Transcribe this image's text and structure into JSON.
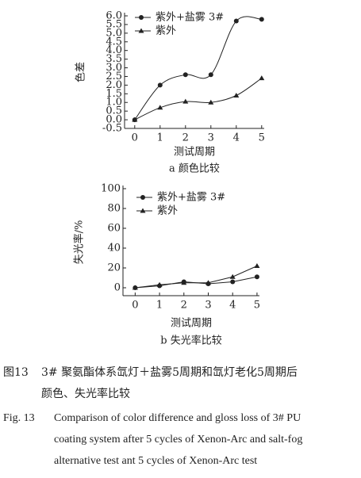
{
  "chart_data": [
    {
      "type": "line",
      "line_style": "smooth",
      "caption": "a 颜色比较",
      "x_label": "测试周期",
      "y_label": "色差",
      "x": [
        0,
        1,
        2,
        3,
        4,
        5
      ],
      "xlim": [
        -0.4,
        5.1
      ],
      "xticks": [
        0,
        1,
        2,
        3,
        4,
        5
      ],
      "ylim": [
        -0.5,
        6.0
      ],
      "yticks": [
        -0.5,
        {
          "value": 0,
          "label": "0.0"
        },
        0.5,
        {
          "value": 1,
          "label": "1.0"
        },
        1.5,
        {
          "value": 2,
          "label": "2.0"
        },
        2.5,
        {
          "value": 3,
          "label": "3.0"
        },
        3.5,
        {
          "value": 4,
          "label": "4.0"
        },
        4.5,
        {
          "value": 5,
          "label": "5.0"
        },
        5.5,
        {
          "value": 6,
          "label": "6.0"
        }
      ],
      "series": [
        {
          "name": "紫外+盐雾 3#",
          "marker": "circle",
          "color": "#222",
          "values": [
            0.0,
            2.0,
            2.6,
            2.6,
            5.7,
            5.8
          ]
        },
        {
          "name": "紫外",
          "marker": "triangle",
          "color": "#222",
          "values": [
            0.0,
            0.7,
            1.05,
            1.0,
            1.4,
            2.4
          ]
        }
      ]
    },
    {
      "type": "line",
      "line_style": "straight",
      "caption": "b 失光率比较",
      "x_label": "测试周期",
      "y_label": "失光率/%",
      "x": [
        0,
        1,
        2,
        3,
        4,
        5
      ],
      "xlim": [
        -0.5,
        5.1
      ],
      "xticks": [
        0,
        1,
        2,
        3,
        4,
        5
      ],
      "ylim": [
        -8,
        100
      ],
      "yticks": [
        0,
        20,
        40,
        60,
        80,
        100
      ],
      "series": [
        {
          "name": "紫外+盐雾 3#",
          "marker": "circle",
          "color": "#222",
          "values": [
            0,
            2,
            6,
            4,
            6,
            11
          ]
        },
        {
          "name": "紫外",
          "marker": "triangle",
          "color": "#222",
          "values": [
            0,
            3,
            5,
            5,
            11,
            22
          ]
        }
      ]
    }
  ],
  "caption": {
    "label_cn": "图13",
    "lines_cn": [
      "3# 聚氨酯体系氙灯＋盐雾5周期和氙灯老化5周期后",
      "颜色、失光率比较"
    ],
    "label_en": "Fig. 13",
    "lines_en": [
      "Comparison of color difference and gloss loss of 3# PU",
      "coating system after 5 cycles of Xenon-Arc and salt-fog",
      "alternative test ant 5 cycles of Xenon-Arc test"
    ]
  }
}
